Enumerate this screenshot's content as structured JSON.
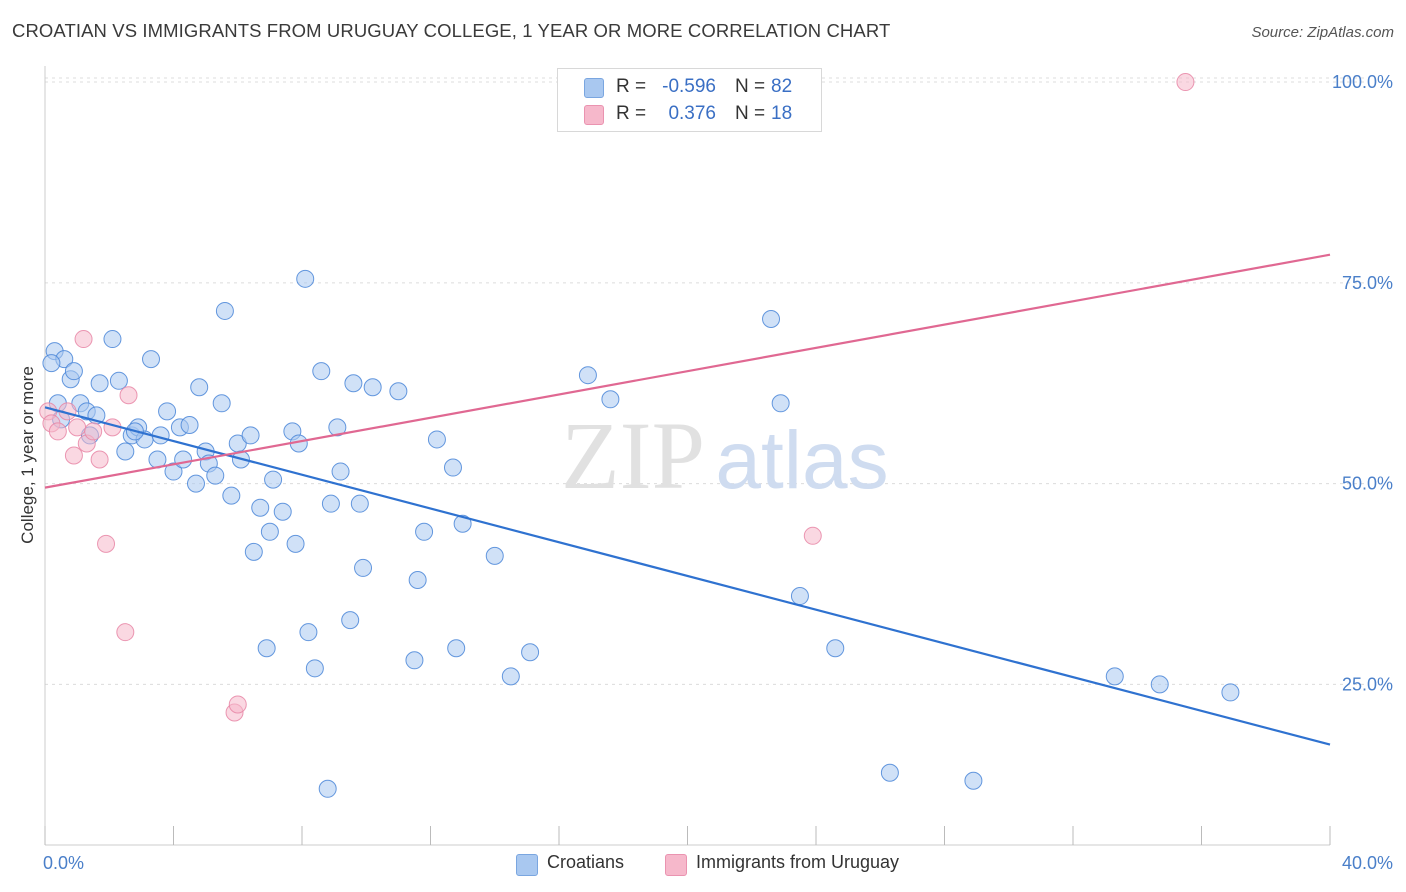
{
  "title": "CROATIAN VS IMMIGRANTS FROM URUGUAY COLLEGE, 1 YEAR OR MORE CORRELATION CHART",
  "source": "Source: ZipAtlas.com",
  "watermark": {
    "zip": "ZIP",
    "atlas": "atlas"
  },
  "legend_top": {
    "rows": [
      {
        "r_label": "R =",
        "r_value": "-0.596",
        "n_label": "N =",
        "n_value": "82",
        "color": "#a9c8f0"
      },
      {
        "r_label": "R =",
        "r_value": "0.376",
        "n_label": "N =",
        "n_value": "18",
        "color": "#f6b8cb"
      }
    ]
  },
  "legend_bottom": [
    {
      "label": "Croatians",
      "color": "#a9c8f0"
    },
    {
      "label": "Immigrants from Uruguay",
      "color": "#f6b8cb"
    }
  ],
  "chart_data": {
    "type": "scatter",
    "title": "CROATIAN VS IMMIGRANTS FROM URUGUAY COLLEGE, 1 YEAR OR MORE CORRELATION CHART",
    "xlabel": "",
    "ylabel": "College, 1 year or more",
    "xlim": [
      0,
      40
    ],
    "ylim": [
      5,
      102
    ],
    "x_tick_labels": [
      "0.0%",
      "40.0%"
    ],
    "y_ticks": [
      25,
      50,
      75,
      100
    ],
    "y_tick_labels": [
      "25.0%",
      "50.0%",
      "75.0%",
      "100.0%"
    ],
    "grid": true,
    "legend_position": "top-center",
    "series": [
      {
        "name": "Croatians",
        "color": "#4a86d8",
        "fill": "#a9c8f0",
        "trend": {
          "x": [
            0,
            40
          ],
          "y": [
            59.5,
            17.5
          ],
          "color": "#2f72d0"
        },
        "points": [
          [
            0.3,
            66.5
          ],
          [
            0.5,
            58.0
          ],
          [
            0.6,
            65.5
          ],
          [
            0.8,
            63.0
          ],
          [
            0.9,
            64.0
          ],
          [
            1.1,
            60.0
          ],
          [
            1.3,
            59.0
          ],
          [
            1.4,
            56.0
          ],
          [
            1.6,
            58.5
          ],
          [
            1.7,
            62.5
          ],
          [
            2.1,
            68.0
          ],
          [
            2.3,
            62.8
          ],
          [
            2.5,
            54.0
          ],
          [
            2.7,
            56.0
          ],
          [
            2.9,
            57.0
          ],
          [
            3.1,
            55.5
          ],
          [
            3.3,
            65.5
          ],
          [
            3.5,
            53.0
          ],
          [
            3.6,
            56.0
          ],
          [
            3.8,
            59.0
          ],
          [
            4.0,
            51.5
          ],
          [
            4.2,
            57.0
          ],
          [
            4.3,
            53.0
          ],
          [
            4.5,
            57.3
          ],
          [
            4.7,
            50.0
          ],
          [
            4.8,
            62.0
          ],
          [
            5.0,
            54.0
          ],
          [
            5.1,
            52.5
          ],
          [
            5.3,
            51.0
          ],
          [
            5.5,
            60.0
          ],
          [
            5.6,
            71.5
          ],
          [
            5.8,
            48.5
          ],
          [
            6.0,
            55.0
          ],
          [
            6.1,
            53.0
          ],
          [
            6.4,
            56.0
          ],
          [
            6.5,
            41.5
          ],
          [
            6.7,
            47.0
          ],
          [
            6.9,
            29.5
          ],
          [
            7.0,
            44.0
          ],
          [
            7.1,
            50.5
          ],
          [
            7.4,
            46.5
          ],
          [
            7.7,
            56.5
          ],
          [
            7.8,
            42.5
          ],
          [
            7.9,
            55.0
          ],
          [
            8.1,
            75.5
          ],
          [
            8.2,
            31.5
          ],
          [
            8.4,
            27.0
          ],
          [
            8.6,
            64.0
          ],
          [
            8.8,
            12.0
          ],
          [
            8.9,
            47.5
          ],
          [
            9.1,
            57.0
          ],
          [
            9.2,
            51.5
          ],
          [
            9.5,
            33.0
          ],
          [
            9.6,
            62.5
          ],
          [
            9.8,
            47.5
          ],
          [
            9.9,
            39.5
          ],
          [
            10.2,
            62.0
          ],
          [
            11.0,
            61.5
          ],
          [
            11.5,
            28.0
          ],
          [
            11.6,
            38.0
          ],
          [
            11.8,
            44.0
          ],
          [
            12.2,
            55.5
          ],
          [
            12.7,
            52.0
          ],
          [
            12.8,
            29.5
          ],
          [
            13.0,
            45.0
          ],
          [
            14.0,
            41.0
          ],
          [
            14.5,
            26.0
          ],
          [
            15.1,
            29.0
          ],
          [
            16.9,
            63.5
          ],
          [
            17.6,
            60.5
          ],
          [
            22.6,
            70.5
          ],
          [
            22.9,
            60.0
          ],
          [
            23.5,
            36.0
          ],
          [
            24.6,
            29.5
          ],
          [
            26.3,
            14.0
          ],
          [
            28.9,
            13.0
          ],
          [
            33.3,
            26.0
          ],
          [
            34.7,
            25.0
          ],
          [
            36.9,
            24.0
          ],
          [
            0.2,
            65.0
          ],
          [
            0.4,
            60.0
          ],
          [
            2.8,
            56.5
          ]
        ]
      },
      {
        "name": "Immigrants from Uruguay",
        "color": "#e886a6",
        "fill": "#f6b8cb",
        "trend": {
          "x": [
            0,
            40
          ],
          "y": [
            49.5,
            78.5
          ],
          "color": "#e06892"
        },
        "points": [
          [
            0.1,
            59.0
          ],
          [
            0.2,
            57.5
          ],
          [
            0.4,
            56.5
          ],
          [
            0.7,
            59.0
          ],
          [
            0.9,
            53.5
          ],
          [
            1.0,
            57.0
          ],
          [
            1.2,
            68.0
          ],
          [
            1.3,
            55.0
          ],
          [
            1.5,
            56.5
          ],
          [
            1.7,
            53.0
          ],
          [
            1.9,
            42.5
          ],
          [
            2.1,
            57.0
          ],
          [
            2.5,
            31.5
          ],
          [
            2.6,
            61.0
          ],
          [
            5.9,
            21.5
          ],
          [
            6.0,
            22.5
          ],
          [
            23.9,
            43.5
          ],
          [
            35.5,
            100.0
          ]
        ]
      }
    ]
  }
}
